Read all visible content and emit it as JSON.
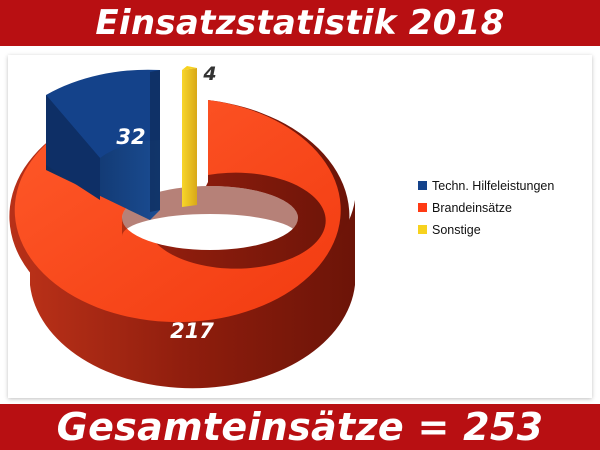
{
  "header": {
    "title": "Einsatzstatistik 2018"
  },
  "footer": {
    "total_text": "Gesamteinsätze = 253"
  },
  "chart_data": {
    "type": "pie",
    "title": "Einsatzstatistik 2018",
    "series": [
      {
        "name": "Techn. Hilfeleistungen",
        "value": 32,
        "color": "#14428a"
      },
      {
        "name": "Brandeinsätze",
        "value": 217,
        "color": "#ff3a14"
      },
      {
        "name": "Sonstige",
        "value": 4,
        "color": "#f7d21e"
      }
    ],
    "total": 253,
    "donut": true,
    "legend_position": "right"
  }
}
